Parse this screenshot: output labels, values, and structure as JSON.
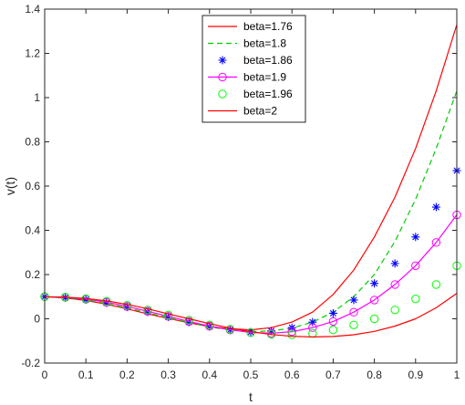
{
  "chart_data": {
    "type": "line",
    "title": "",
    "xlabel": "t",
    "ylabel": "v(t)",
    "xlim": [
      0,
      1
    ],
    "ylim": [
      -0.2,
      1.4
    ],
    "xticks": [
      "0",
      "0.1",
      "0.2",
      "0.3",
      "0.4",
      "0.5",
      "0.6",
      "0.7",
      "0.8",
      "0.9",
      "1"
    ],
    "yticks": [
      "-0.2",
      "0",
      "0.2",
      "0.4",
      "0.6",
      "0.8",
      "1",
      "1.2",
      "1.4"
    ],
    "grid": false,
    "legend_position": "top-center",
    "x": [
      0,
      0.05,
      0.1,
      0.15,
      0.2,
      0.25,
      0.3,
      0.35,
      0.4,
      0.45,
      0.5,
      0.55,
      0.6,
      0.65,
      0.7,
      0.75,
      0.8,
      0.85,
      0.9,
      0.95,
      1.0
    ],
    "series": [
      {
        "name": "beta=1.76",
        "color": "#ff0000",
        "style": "solid",
        "marker": "none",
        "values": [
          0.1,
          0.094,
          0.083,
          0.066,
          0.045,
          0.022,
          0.002,
          -0.018,
          -0.035,
          -0.045,
          -0.05,
          -0.04,
          -0.015,
          0.03,
          0.11,
          0.22,
          0.37,
          0.55,
          0.77,
          1.03,
          1.33
        ]
      },
      {
        "name": "beta=1.8",
        "color": "#00cc00",
        "style": "dashed",
        "marker": "none",
        "values": [
          0.1,
          0.095,
          0.085,
          0.069,
          0.049,
          0.027,
          0.005,
          -0.017,
          -0.037,
          -0.05,
          -0.058,
          -0.055,
          -0.042,
          -0.015,
          0.03,
          0.1,
          0.2,
          0.35,
          0.54,
          0.77,
          1.03
        ]
      },
      {
        "name": "beta=1.86",
        "color": "#0000ff",
        "style": "none",
        "marker": "asterisk",
        "values": [
          0.1,
          0.096,
          0.087,
          0.072,
          0.053,
          0.031,
          0.008,
          -0.015,
          -0.035,
          -0.05,
          -0.06,
          -0.055,
          -0.04,
          -0.015,
          0.025,
          0.085,
          0.16,
          0.25,
          0.37,
          0.505,
          0.67
        ]
      },
      {
        "name": "beta=1.9",
        "color": "#ff00ff",
        "style": "solid",
        "marker": "circle",
        "values": [
          0.1,
          0.097,
          0.089,
          0.075,
          0.056,
          0.034,
          0.011,
          -0.012,
          -0.033,
          -0.05,
          -0.062,
          -0.065,
          -0.058,
          -0.04,
          -0.012,
          0.03,
          0.085,
          0.155,
          0.24,
          0.345,
          0.47
        ]
      },
      {
        "name": "beta=1.96",
        "color": "#00ff00",
        "style": "none",
        "marker": "circle",
        "values": [
          0.1,
          0.098,
          0.091,
          0.079,
          0.061,
          0.04,
          0.017,
          -0.006,
          -0.028,
          -0.047,
          -0.062,
          -0.07,
          -0.072,
          -0.066,
          -0.05,
          -0.028,
          0.0,
          0.04,
          0.09,
          0.155,
          0.24
        ]
      },
      {
        "name": "beta=2",
        "color": "#ff0000",
        "style": "solid",
        "marker": "none",
        "values": [
          0.1,
          0.098,
          0.092,
          0.081,
          0.065,
          0.045,
          0.022,
          0.0,
          -0.022,
          -0.042,
          -0.058,
          -0.071,
          -0.079,
          -0.082,
          -0.08,
          -0.072,
          -0.057,
          -0.033,
          0.0,
          0.05,
          0.115
        ]
      }
    ]
  }
}
